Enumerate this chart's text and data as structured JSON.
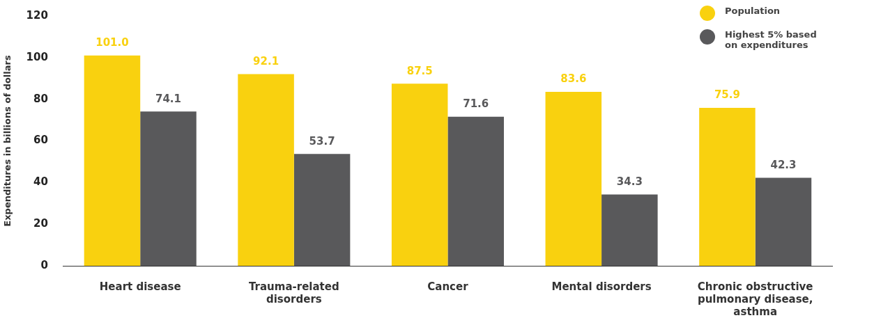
{
  "chart_data": {
    "type": "bar",
    "ylabel": "Expenditures in billions of dollars",
    "categories": [
      "Heart disease",
      "Trauma-related disorders",
      "Cancer",
      "Mental disorders",
      "Chronic obstructive pulmonary disease, asthma"
    ],
    "series": [
      {
        "name": "Population",
        "color": "#f9d10f",
        "values": [
          101.0,
          92.1,
          87.5,
          83.6,
          75.9
        ],
        "value_labels": [
          "101.0",
          "92.1",
          "87.5",
          "83.6",
          "75.9"
        ]
      },
      {
        "name": "Highest 5% based on expenditures",
        "color": "#59595b",
        "values": [
          74.1,
          53.7,
          71.6,
          34.3,
          42.3
        ],
        "value_labels": [
          "74.1",
          "53.7",
          "71.6",
          "34.3",
          "42.3"
        ]
      }
    ],
    "ylim": [
      0,
      120
    ],
    "yticks": [
      0,
      20,
      40,
      60,
      80,
      100,
      120
    ],
    "grid": false,
    "legend": "top right"
  }
}
